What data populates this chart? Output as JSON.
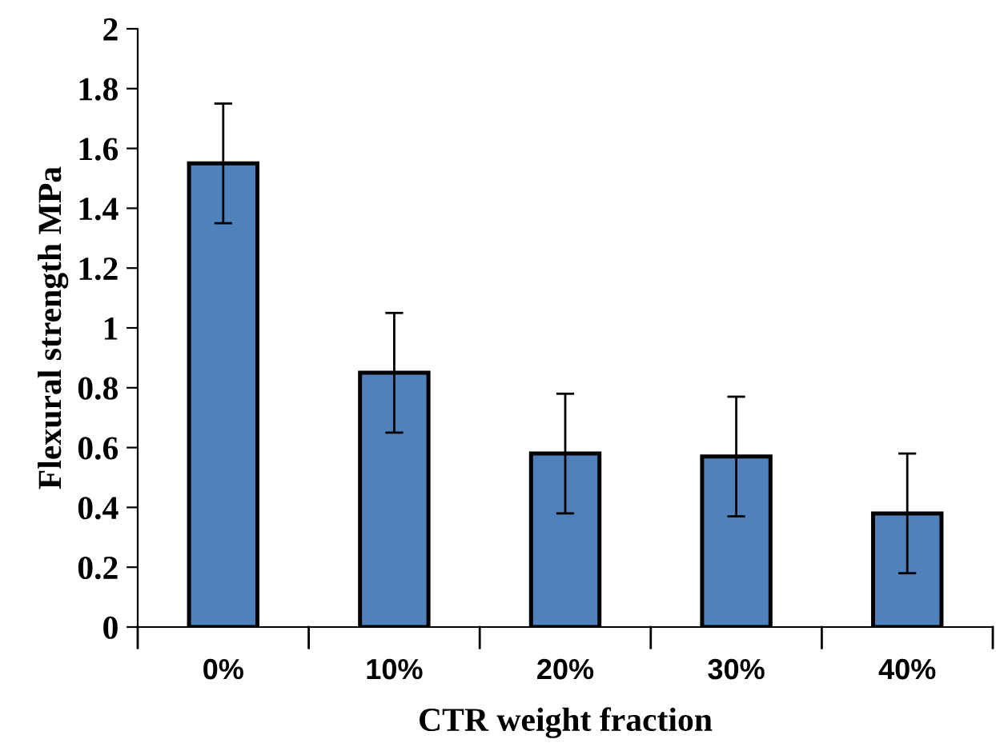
{
  "chart_data": {
    "type": "bar",
    "xlabel": "CTR weight fraction",
    "ylabel": "Flexural strength MPa",
    "categories": [
      "0%",
      "10%",
      "20%",
      "30%",
      "40%"
    ],
    "values": [
      1.55,
      0.85,
      0.58,
      0.57,
      0.38
    ],
    "errors": [
      0.2,
      0.2,
      0.2,
      0.2,
      0.2
    ],
    "color": "#4f81bd",
    "ylim": [
      0,
      2
    ],
    "yticks": [
      0,
      0.2,
      0.4,
      0.6,
      0.8,
      1,
      1.2,
      1.4,
      1.6,
      1.8,
      2
    ],
    "grid": false,
    "legend": false
  }
}
